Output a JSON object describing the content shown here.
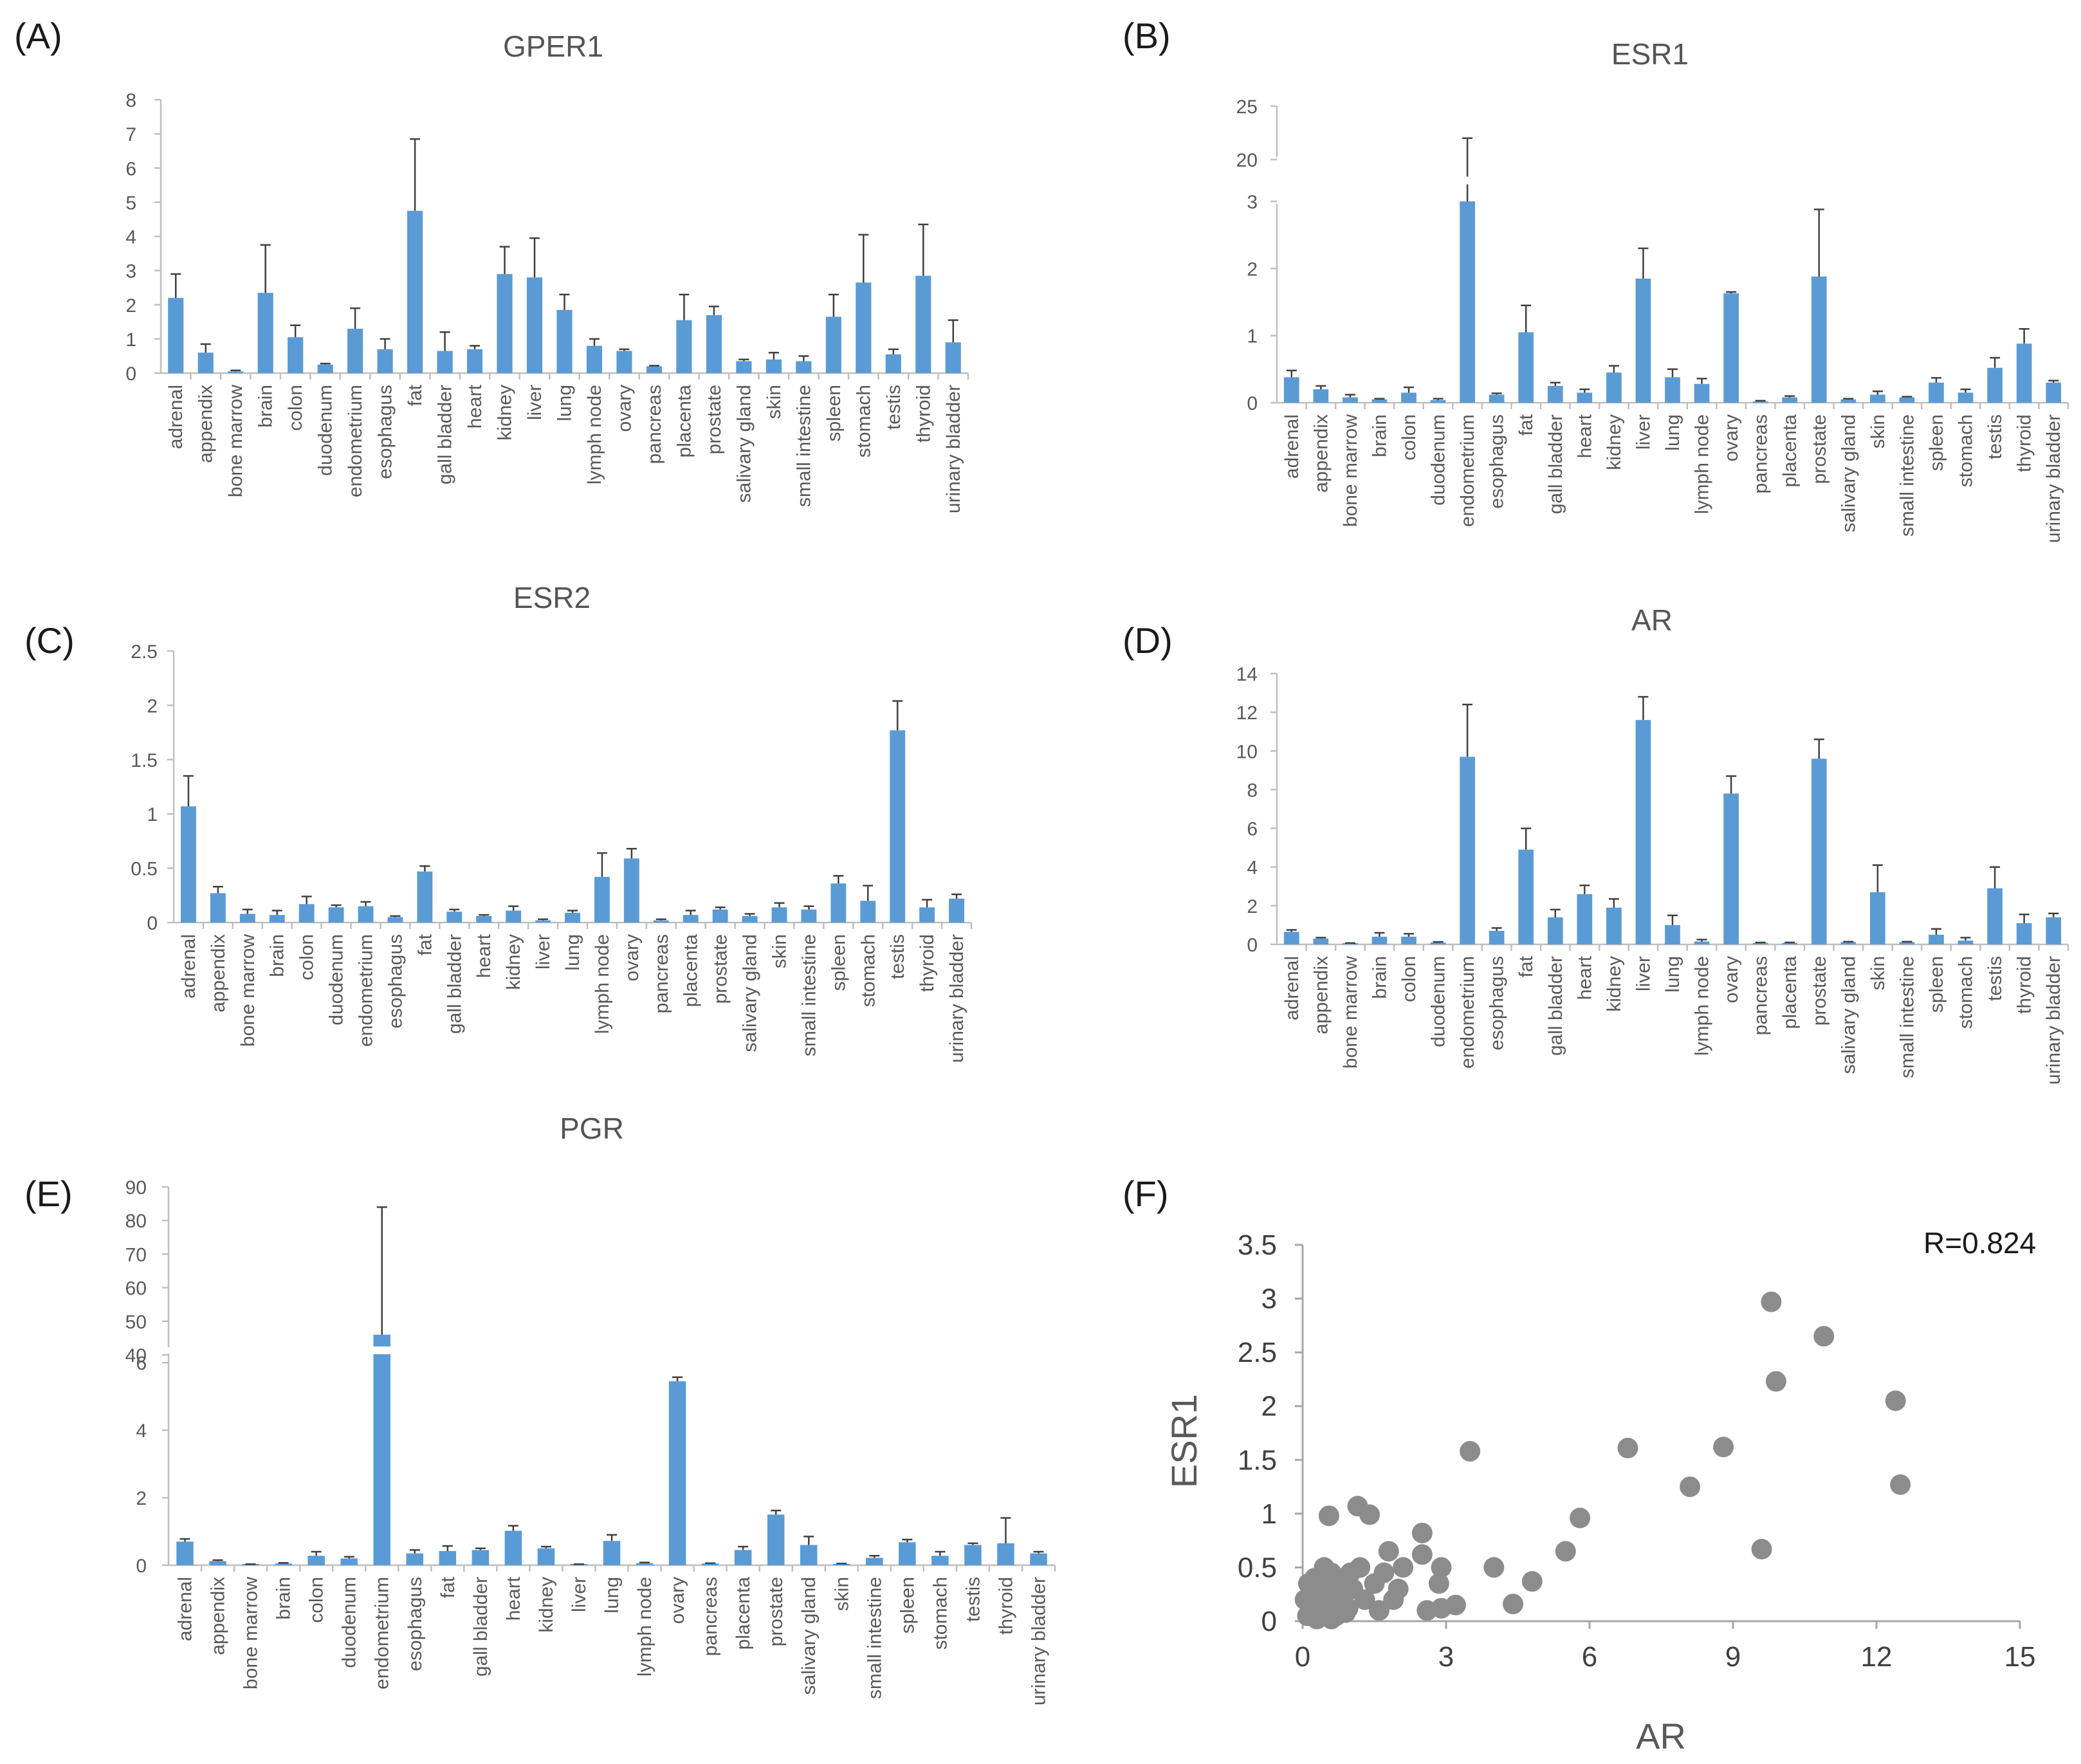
{
  "chart_data": [
    {
      "id": "A",
      "panel_label": "(A)",
      "type": "bar",
      "title": "GPER1",
      "categories": [
        "adrenal",
        "appendix",
        "bone marrow",
        "brain",
        "colon",
        "duodenum",
        "endometrium",
        "esophagus",
        "fat",
        "gall bladder",
        "heart",
        "kidney",
        "liver",
        "lung",
        "lymph node",
        "ovary",
        "pancreas",
        "placenta",
        "prostate",
        "salivary gland",
        "skin",
        "small intestine",
        "spleen",
        "stomach",
        "testis",
        "thyroid",
        "urinary bladder"
      ],
      "values": [
        2.2,
        0.6,
        0.05,
        2.35,
        1.05,
        0.25,
        1.3,
        0.7,
        4.75,
        0.65,
        0.7,
        2.9,
        2.8,
        1.85,
        0.8,
        0.65,
        0.2,
        1.55,
        1.7,
        0.35,
        0.4,
        0.35,
        1.65,
        2.65,
        0.55,
        2.85,
        0.9
      ],
      "errors": [
        0.7,
        0.25,
        0.03,
        1.4,
        0.35,
        0.03,
        0.6,
        0.3,
        2.1,
        0.55,
        0.1,
        0.8,
        1.15,
        0.45,
        0.2,
        0.05,
        0.02,
        0.75,
        0.25,
        0.05,
        0.2,
        0.15,
        0.65,
        1.4,
        0.15,
        1.5,
        0.65
      ],
      "yticks": [
        "0",
        "1",
        "2",
        "3",
        "4",
        "5",
        "6",
        "7",
        "8"
      ],
      "ylim": [
        0,
        8
      ]
    },
    {
      "id": "B",
      "panel_label": "(B)",
      "type": "bar",
      "title": "ESR1",
      "categories": [
        "adrenal",
        "appendix",
        "bone marrow",
        "brain",
        "colon",
        "duodenum",
        "endometrium",
        "esophagus",
        "fat",
        "gall bladder",
        "heart",
        "kidney",
        "liver",
        "lung",
        "lymph node",
        "ovary",
        "pancreas",
        "placenta",
        "prostate",
        "salivary gland",
        "skin",
        "small intestine",
        "spleen",
        "stomach",
        "testis",
        "thyroid",
        "urinary bladder"
      ],
      "values": [
        0.38,
        0.2,
        0.08,
        0.05,
        0.15,
        0.04,
        19,
        0.12,
        1.05,
        0.25,
        0.15,
        0.45,
        1.85,
        0.38,
        0.28,
        1.63,
        0.02,
        0.08,
        1.88,
        0.05,
        0.12,
        0.08,
        0.3,
        0.15,
        0.52,
        0.88,
        0.3
      ],
      "errors": [
        0.1,
        0.05,
        0.04,
        0.01,
        0.08,
        0.02,
        3,
        0.02,
        0.4,
        0.05,
        0.05,
        0.1,
        0.45,
        0.12,
        0.08,
        0.02,
        0.01,
        0.02,
        1.0,
        0.01,
        0.05,
        0.01,
        0.07,
        0.05,
        0.15,
        0.22,
        0.03
      ],
      "yticks": [
        "0",
        "1",
        "2",
        "3",
        "20",
        "25"
      ],
      "ylim": [
        0,
        25
      ],
      "axis_break": [
        3,
        20
      ]
    },
    {
      "id": "C",
      "panel_label": "(C)",
      "type": "bar",
      "title": "ESR2",
      "categories": [
        "adrenal",
        "appendix",
        "bone marrow",
        "brain",
        "colon",
        "duodenum",
        "endometrium",
        "esophagus",
        "fat",
        "gall bladder",
        "heart",
        "kidney",
        "liver",
        "lung",
        "lymph node",
        "ovary",
        "pancreas",
        "placenta",
        "prostate",
        "salivary gland",
        "skin",
        "small intestine",
        "spleen",
        "stomach",
        "testis",
        "thyroid",
        "urinary bladder"
      ],
      "values": [
        1.07,
        0.27,
        0.08,
        0.07,
        0.17,
        0.14,
        0.15,
        0.05,
        0.47,
        0.1,
        0.06,
        0.11,
        0.02,
        0.09,
        0.42,
        0.59,
        0.02,
        0.07,
        0.12,
        0.06,
        0.14,
        0.12,
        0.36,
        0.2,
        1.77,
        0.14,
        0.22
      ],
      "errors": [
        0.28,
        0.06,
        0.04,
        0.04,
        0.07,
        0.02,
        0.04,
        0.01,
        0.05,
        0.02,
        0.01,
        0.04,
        0.01,
        0.02,
        0.22,
        0.09,
        0.01,
        0.04,
        0.02,
        0.02,
        0.04,
        0.03,
        0.07,
        0.14,
        0.27,
        0.07,
        0.04
      ],
      "yticks": [
        "0",
        "0.5",
        "1",
        "1.5",
        "2",
        "2.5"
      ],
      "ylim": [
        0,
        2.5
      ]
    },
    {
      "id": "D",
      "panel_label": "(D)",
      "type": "bar",
      "title": "AR",
      "categories": [
        "adrenal",
        "appendix",
        "bone marrow",
        "brain",
        "colon",
        "duodenum",
        "endometrium",
        "esophagus",
        "fat",
        "gall bladder",
        "heart",
        "kidney",
        "liver",
        "lung",
        "lymph node",
        "ovary",
        "pancreas",
        "placenta",
        "prostate",
        "salivary gland",
        "skin",
        "small intestine",
        "spleen",
        "stomach",
        "testis",
        "thyroid",
        "urinary bladder"
      ],
      "values": [
        0.65,
        0.3,
        0.05,
        0.4,
        0.4,
        0.1,
        9.7,
        0.7,
        4.9,
        1.4,
        2.6,
        1.9,
        11.6,
        1.0,
        0.15,
        7.8,
        0.08,
        0.08,
        9.6,
        0.12,
        2.7,
        0.12,
        0.5,
        0.2,
        2.9,
        1.1,
        1.4
      ],
      "errors": [
        0.1,
        0.05,
        0.02,
        0.2,
        0.15,
        0.03,
        2.7,
        0.15,
        1.1,
        0.4,
        0.45,
        0.45,
        1.2,
        0.5,
        0.1,
        0.9,
        0.02,
        0.02,
        1.0,
        0.02,
        1.4,
        0.02,
        0.3,
        0.15,
        1.1,
        0.45,
        0.2
      ],
      "yticks": [
        "0",
        "2",
        "4",
        "6",
        "8",
        "10",
        "12",
        "14"
      ],
      "ylim": [
        0,
        14
      ]
    },
    {
      "id": "E",
      "panel_label": "(E)",
      "type": "bar",
      "title": "PGR",
      "categories": [
        "adrenal",
        "appendix",
        "bone marrow",
        "brain",
        "colon",
        "duodenum",
        "endometrium",
        "esophagus",
        "fat",
        "gall bladder",
        "heart",
        "kidney",
        "liver",
        "lung",
        "lymph node",
        "ovary",
        "pancreas",
        "placenta",
        "prostate",
        "salivary gland",
        "skin",
        "small intestine",
        "spleen",
        "stomach",
        "testis",
        "thyroid",
        "urinary bladder"
      ],
      "values": [
        0.7,
        0.12,
        0.02,
        0.05,
        0.28,
        0.2,
        46,
        0.35,
        0.42,
        0.45,
        1.02,
        0.5,
        0.02,
        0.72,
        0.06,
        5.45,
        0.05,
        0.45,
        1.5,
        0.6,
        0.04,
        0.22,
        0.68,
        0.28,
        0.6,
        0.65,
        0.35
      ],
      "errors": [
        0.08,
        0.03,
        0.01,
        0.02,
        0.12,
        0.05,
        38,
        0.1,
        0.15,
        0.05,
        0.15,
        0.05,
        0.01,
        0.18,
        0.02,
        0.12,
        0.01,
        0.1,
        0.12,
        0.25,
        0.01,
        0.06,
        0.08,
        0.12,
        0.05,
        0.75,
        0.05
      ],
      "yticks": [
        "0",
        "2",
        "4",
        "6",
        "40",
        "50",
        "60",
        "70",
        "80",
        "90"
      ],
      "ylim": [
        0,
        90
      ],
      "axis_break": [
        6.5,
        40
      ]
    },
    {
      "id": "F",
      "panel_label": "(F)",
      "type": "scatter",
      "xlabel": "AR",
      "ylabel": "ESR1",
      "annotation": "R=0.824",
      "xticks": [
        "0",
        "3",
        "6",
        "9",
        "12",
        "15"
      ],
      "yticks": [
        "0",
        "0.5",
        "1",
        "1.5",
        "2",
        "2.5",
        "3",
        "3.5"
      ],
      "xlim": [
        0,
        15
      ],
      "ylim": [
        0,
        3.5
      ],
      "points": [
        [
          9.8,
          2.97
        ],
        [
          10.9,
          2.65
        ],
        [
          9.9,
          2.23
        ],
        [
          12.4,
          2.05
        ],
        [
          6.8,
          1.61
        ],
        [
          8.8,
          1.62
        ],
        [
          3.5,
          1.58
        ],
        [
          12.5,
          1.27
        ],
        [
          8.1,
          1.25
        ],
        [
          9.6,
          0.67
        ],
        [
          5.8,
          0.96
        ],
        [
          5.5,
          0.65
        ],
        [
          4.0,
          0.5
        ],
        [
          4.8,
          0.37
        ],
        [
          4.4,
          0.16
        ],
        [
          3.2,
          0.15
        ],
        [
          2.9,
          0.12
        ],
        [
          2.6,
          0.1
        ],
        [
          2.5,
          0.82
        ],
        [
          2.5,
          0.62
        ],
        [
          2.9,
          0.5
        ],
        [
          2.85,
          0.35
        ],
        [
          1.15,
          1.07
        ],
        [
          1.4,
          0.99
        ],
        [
          0.55,
          0.98
        ],
        [
          2.1,
          0.5
        ],
        [
          1.8,
          0.65
        ],
        [
          2.0,
          0.3
        ],
        [
          1.7,
          0.45
        ],
        [
          1.9,
          0.2
        ],
        [
          1.5,
          0.35
        ],
        [
          1.3,
          0.2
        ],
        [
          1.2,
          0.5
        ],
        [
          1.05,
          0.3
        ],
        [
          0.95,
          0.12
        ],
        [
          0.85,
          0.4
        ],
        [
          0.8,
          0.25
        ],
        [
          0.7,
          0.05
        ],
        [
          0.6,
          0.45
        ],
        [
          0.55,
          0.3
        ],
        [
          0.5,
          0.15
        ],
        [
          0.45,
          0.5
        ],
        [
          0.4,
          0.35
        ],
        [
          0.35,
          0.22
        ],
        [
          0.3,
          0.1
        ],
        [
          0.25,
          0.4
        ],
        [
          0.2,
          0.28
        ],
        [
          0.15,
          0.15
        ],
        [
          0.1,
          0.05
        ],
        [
          0.05,
          0.2
        ],
        [
          0.12,
          0.35
        ],
        [
          0.3,
          0.02
        ],
        [
          0.6,
          0.02
        ],
        [
          0.9,
          0.08
        ],
        [
          1.6,
          0.1
        ],
        [
          0.75,
          0.32
        ],
        [
          0.2,
          0.12
        ],
        [
          0.45,
          0.08
        ],
        [
          1.0,
          0.45
        ],
        [
          0.65,
          0.18
        ]
      ]
    }
  ]
}
